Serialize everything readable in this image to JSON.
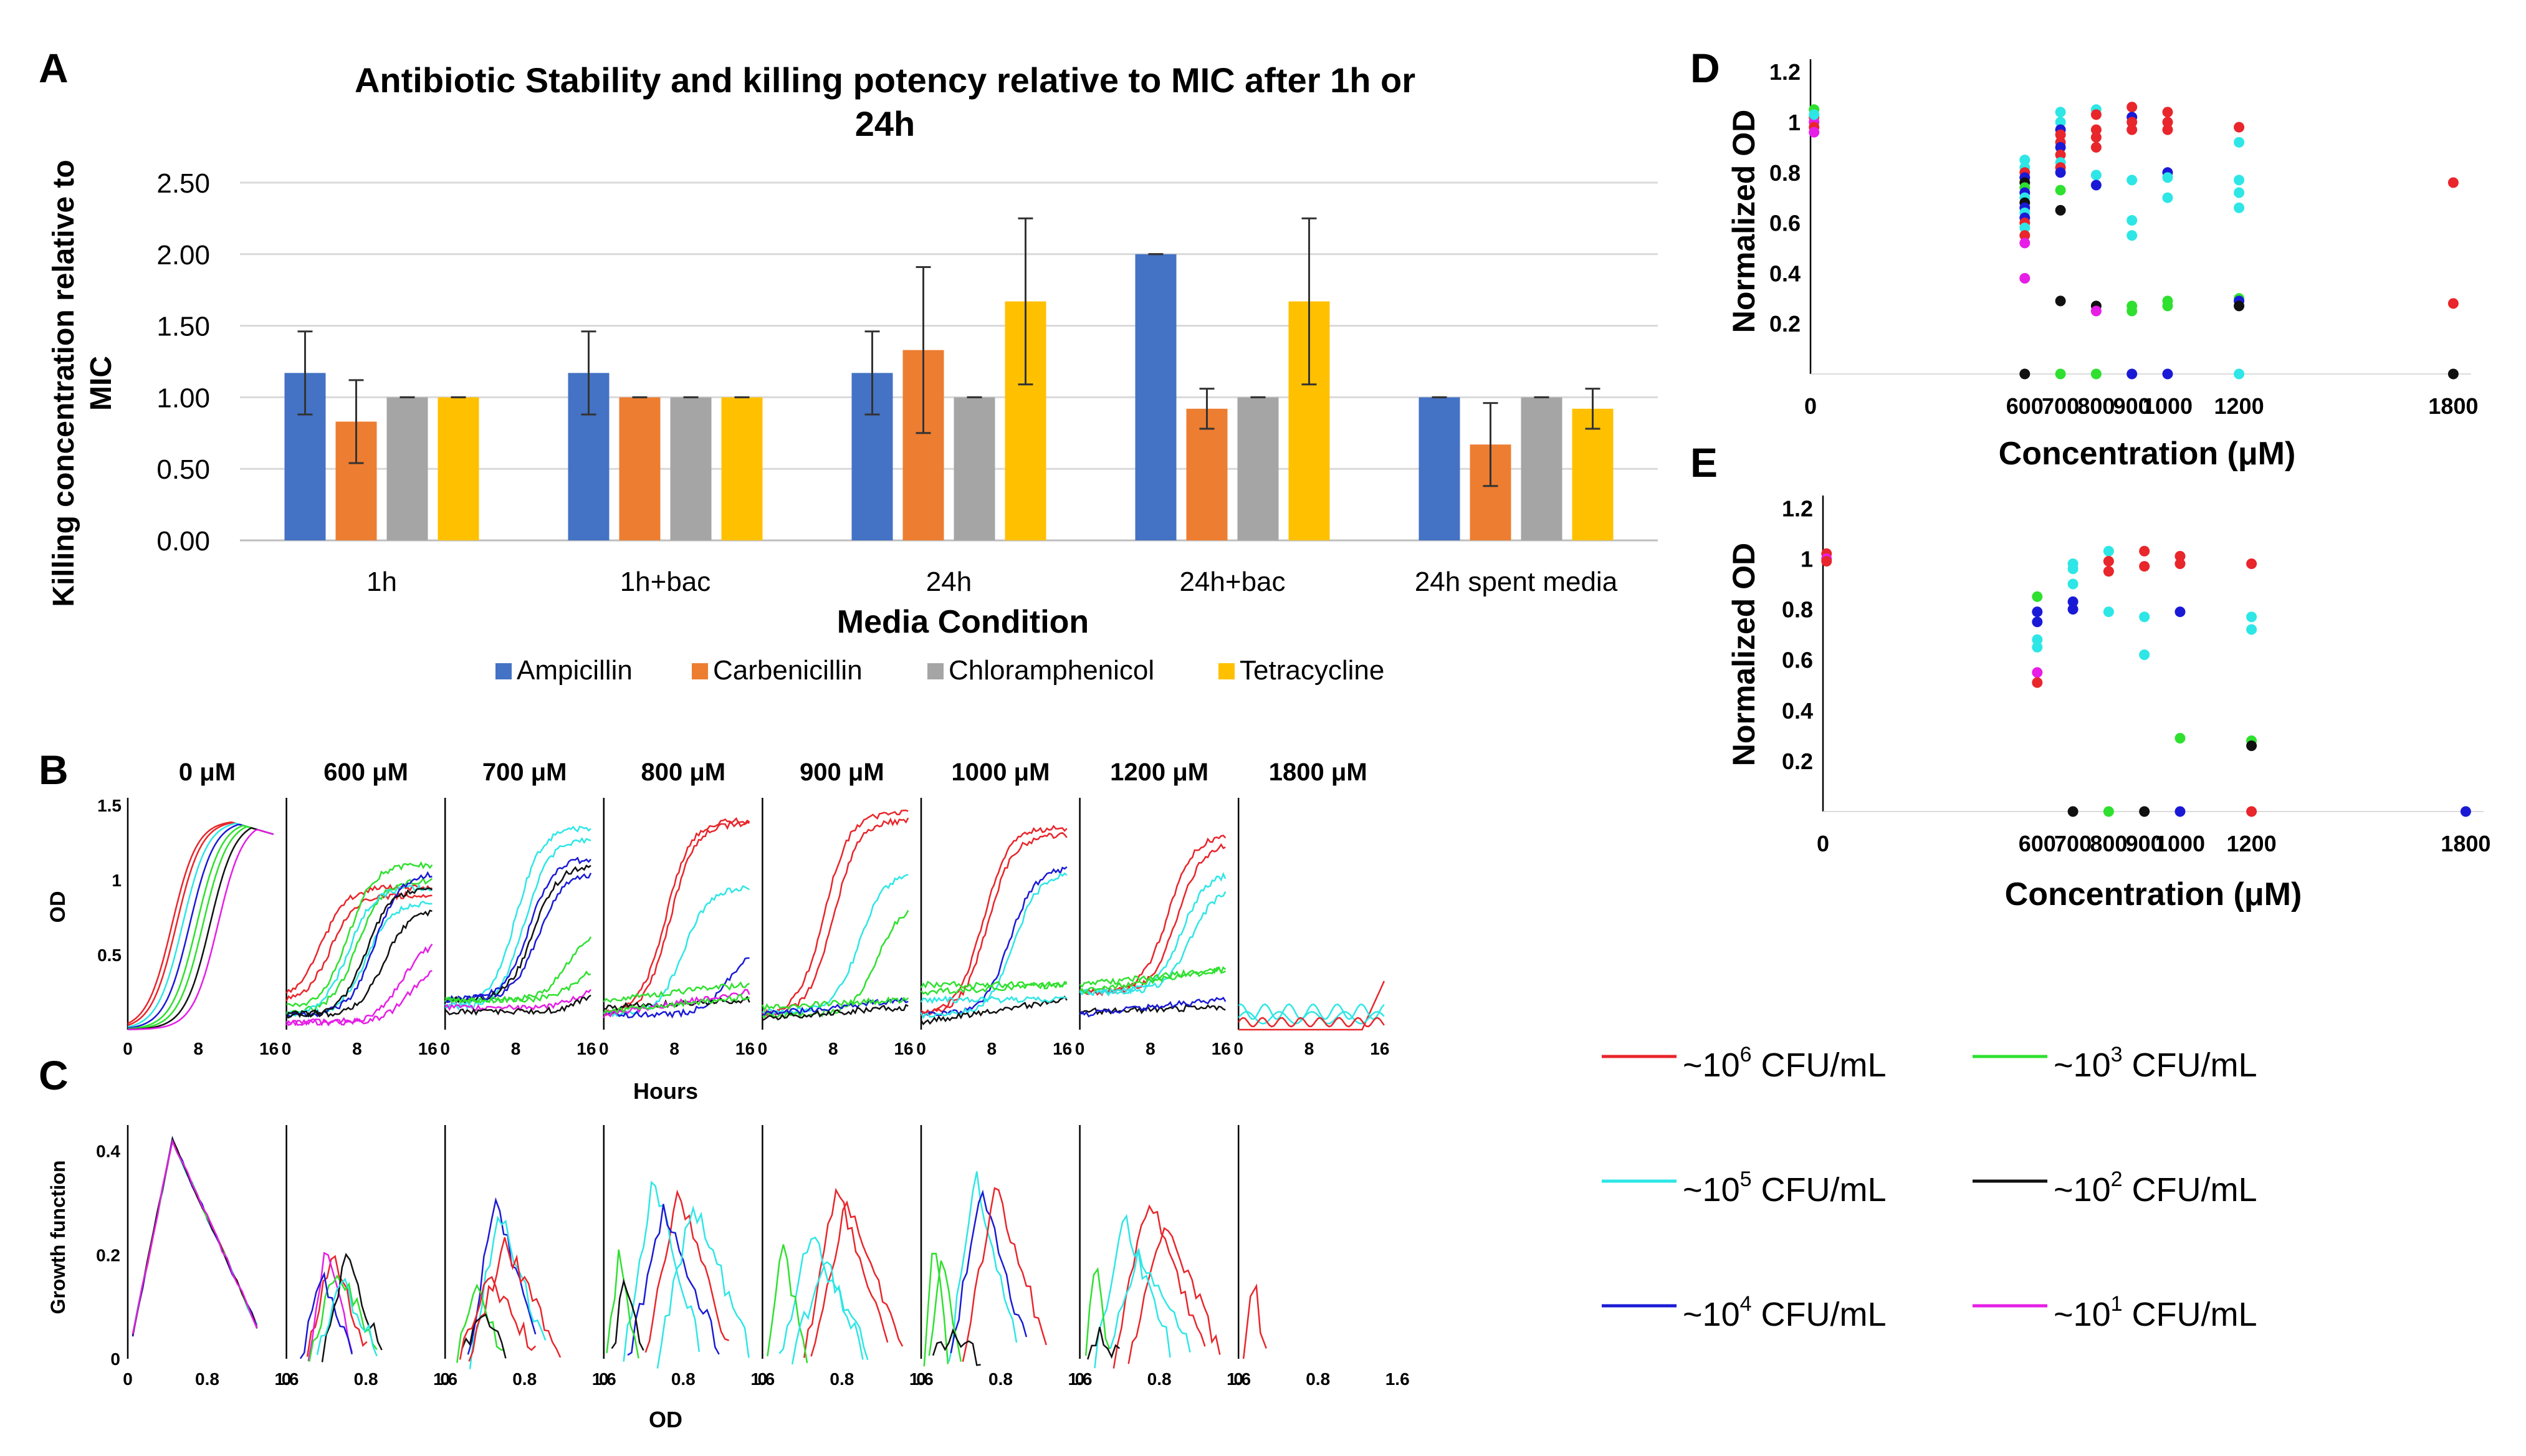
{
  "colors": {
    "Ampicillin": "#4472C4",
    "Carbenicillin": "#ED7D31",
    "Chloramphenicol": "#A5A5A5",
    "Tetracycline": "#FFC000",
    "1e6": "#e8262b",
    "1e5": "#2ee6e6",
    "1e4": "#1a1ad6",
    "1e3": "#2fe02f",
    "1e2": "#111111",
    "1e1": "#e61ee6"
  },
  "panels": {
    "A": "A",
    "B": "B",
    "C": "C",
    "D": "D",
    "E": "E"
  },
  "legend_cfu": [
    {
      "key": "1e6",
      "prefix": "~10",
      "exp": "6",
      "suffix": " CFU/mL"
    },
    {
      "key": "1e3",
      "prefix": "~10",
      "exp": "3",
      "suffix": " CFU/mL"
    },
    {
      "key": "1e5",
      "prefix": "~10",
      "exp": "5",
      "suffix": " CFU/mL"
    },
    {
      "key": "1e2",
      "prefix": "~10",
      "exp": "2",
      "suffix": " CFU/mL"
    },
    {
      "key": "1e4",
      "prefix": "~10",
      "exp": "4",
      "suffix": " CFU/mL"
    },
    {
      "key": "1e1",
      "prefix": "~10",
      "exp": "1",
      "suffix": " CFU/mL"
    }
  ],
  "small_multiples": {
    "concentrations": [
      "0 μM",
      "600 μM",
      "700 μM",
      "800 μM",
      "900 μM",
      "1000 μM",
      "1200 μM",
      "1800 μM"
    ],
    "B": {
      "ylabel": "OD",
      "xlabel": "Hours",
      "xlim": [
        0,
        18
      ],
      "ylim": [
        0,
        1.55
      ],
      "xticks": [
        0,
        8,
        16
      ],
      "xtick_labels": [
        "0",
        "8",
        "16"
      ],
      "yticks": [
        0.5,
        1,
        1.5
      ],
      "ytick_labels": [
        "0.5",
        "1",
        "1.5"
      ]
    },
    "C": {
      "ylabel": "Growth function",
      "xlabel": "OD",
      "xlim": [
        0,
        1.6
      ],
      "ylim": [
        0,
        0.45
      ],
      "xticks": [
        0,
        0.8,
        1.6
      ],
      "xtick_labels": [
        "0",
        "0.8",
        "1.6"
      ],
      "yticks": [
        0,
        0.2,
        0.4
      ],
      "ytick_labels": [
        "0",
        "0.2",
        "0.4"
      ]
    }
  },
  "chart_data": [
    {
      "id": "A",
      "type": "bar",
      "title": "Antibiotic Stability and killing potency relative to MIC after 1h or 24h",
      "title_lines": [
        "Antibiotic Stability and killing potency relative to MIC after 1h or",
        "24h"
      ],
      "xlabel": "Media Condition",
      "ylabel": "Killing concentration relative to MIC",
      "ylabel_lines": [
        "Killing concentration relative to",
        "MIC"
      ],
      "ylim": [
        0,
        2.5
      ],
      "yticks": [
        0,
        0.5,
        1.0,
        1.5,
        2.0,
        2.5
      ],
      "ytick_labels": [
        "0.00",
        "0.50",
        "1.00",
        "1.50",
        "2.00",
        "2.50"
      ],
      "grid": true,
      "legend_position": "bottom",
      "categories": [
        "1h",
        "1h+bac",
        "24h",
        "24h+bac",
        "24h spent media"
      ],
      "series": [
        {
          "name": "Ampicillin",
          "values": [
            1.17,
            1.17,
            1.17,
            2.0,
            1.0
          ],
          "errors": [
            0.29,
            0.29,
            0.29,
            0.0,
            0.0
          ]
        },
        {
          "name": "Carbenicillin",
          "values": [
            0.83,
            1.0,
            1.33,
            0.92,
            0.67
          ],
          "errors": [
            0.29,
            0.0,
            0.58,
            0.14,
            0.29
          ]
        },
        {
          "name": "Chloramphenicol",
          "values": [
            1.0,
            1.0,
            1.0,
            1.0,
            1.0
          ],
          "errors": [
            0.0,
            0.0,
            0.0,
            0.0,
            0.0
          ]
        },
        {
          "name": "Tetracycline",
          "values": [
            1.0,
            1.0,
            1.67,
            1.67,
            0.92
          ],
          "errors": [
            0.0,
            0.0,
            0.58,
            0.58,
            0.14
          ]
        }
      ]
    },
    {
      "id": "D",
      "type": "scatter",
      "xlabel": "Concentration (μM)",
      "ylabel": "Normalized OD",
      "xlim": [
        0,
        1850
      ],
      "ylim": [
        0,
        1.25
      ],
      "xticks": [
        0,
        600,
        700,
        800,
        900,
        1000,
        1200,
        1800
      ],
      "yticks": [
        0.2,
        0.4,
        0.6,
        0.8,
        1,
        1.2
      ],
      "ytick_labels": [
        "0.2",
        "0.4",
        "0.6",
        "0.8",
        "1",
        "1.2"
      ],
      "points": [
        {
          "x": 10,
          "y": 1.05,
          "c": "1e3"
        },
        {
          "x": 10,
          "y": 1.02,
          "c": "1e6"
        },
        {
          "x": 10,
          "y": 1.0,
          "c": "1e1"
        },
        {
          "x": 10,
          "y": 0.98,
          "c": "1e6"
        },
        {
          "x": 10,
          "y": 0.96,
          "c": "1e1"
        },
        {
          "x": 10,
          "y": 1.03,
          "c": "1e5"
        },
        {
          "x": 600,
          "y": 0.85,
          "c": "1e5"
        },
        {
          "x": 600,
          "y": 0.82,
          "c": "1e5"
        },
        {
          "x": 600,
          "y": 0.8,
          "c": "1e6"
        },
        {
          "x": 600,
          "y": 0.78,
          "c": "1e4"
        },
        {
          "x": 600,
          "y": 0.76,
          "c": "1e2"
        },
        {
          "x": 600,
          "y": 0.74,
          "c": "1e3"
        },
        {
          "x": 600,
          "y": 0.72,
          "c": "1e4"
        },
        {
          "x": 600,
          "y": 0.7,
          "c": "1e5"
        },
        {
          "x": 600,
          "y": 0.68,
          "c": "1e2"
        },
        {
          "x": 600,
          "y": 0.66,
          "c": "1e4"
        },
        {
          "x": 600,
          "y": 0.64,
          "c": "1e5"
        },
        {
          "x": 600,
          "y": 0.62,
          "c": "1e4"
        },
        {
          "x": 600,
          "y": 0.6,
          "c": "1e6"
        },
        {
          "x": 600,
          "y": 0.58,
          "c": "1e5"
        },
        {
          "x": 600,
          "y": 0.55,
          "c": "1e6"
        },
        {
          "x": 600,
          "y": 0.52,
          "c": "1e1"
        },
        {
          "x": 600,
          "y": 0.38,
          "c": "1e1"
        },
        {
          "x": 600,
          "y": 0.0,
          "c": "1e2"
        },
        {
          "x": 700,
          "y": 1.04,
          "c": "1e5"
        },
        {
          "x": 700,
          "y": 1.0,
          "c": "1e5"
        },
        {
          "x": 700,
          "y": 0.97,
          "c": "1e4"
        },
        {
          "x": 700,
          "y": 0.95,
          "c": "1e6"
        },
        {
          "x": 700,
          "y": 0.92,
          "c": "1e6"
        },
        {
          "x": 700,
          "y": 0.9,
          "c": "1e4"
        },
        {
          "x": 700,
          "y": 0.87,
          "c": "1e6"
        },
        {
          "x": 700,
          "y": 0.84,
          "c": "1e5"
        },
        {
          "x": 700,
          "y": 0.82,
          "c": "1e6"
        },
        {
          "x": 700,
          "y": 0.8,
          "c": "1e4"
        },
        {
          "x": 700,
          "y": 0.73,
          "c": "1e3"
        },
        {
          "x": 700,
          "y": 0.65,
          "c": "1e2"
        },
        {
          "x": 700,
          "y": 0.29,
          "c": "1e2"
        },
        {
          "x": 700,
          "y": 0.0,
          "c": "1e3"
        },
        {
          "x": 800,
          "y": 1.05,
          "c": "1e5"
        },
        {
          "x": 800,
          "y": 1.03,
          "c": "1e6"
        },
        {
          "x": 800,
          "y": 0.97,
          "c": "1e6"
        },
        {
          "x": 800,
          "y": 0.94,
          "c": "1e6"
        },
        {
          "x": 800,
          "y": 0.9,
          "c": "1e6"
        },
        {
          "x": 800,
          "y": 0.79,
          "c": "1e5"
        },
        {
          "x": 800,
          "y": 0.75,
          "c": "1e4"
        },
        {
          "x": 800,
          "y": 0.27,
          "c": "1e2"
        },
        {
          "x": 800,
          "y": 0.25,
          "c": "1e1"
        },
        {
          "x": 800,
          "y": 0.0,
          "c": "1e3"
        },
        {
          "x": 900,
          "y": 1.06,
          "c": "1e6"
        },
        {
          "x": 900,
          "y": 1.02,
          "c": "1e4"
        },
        {
          "x": 900,
          "y": 1.0,
          "c": "1e6"
        },
        {
          "x": 900,
          "y": 0.97,
          "c": "1e6"
        },
        {
          "x": 900,
          "y": 0.77,
          "c": "1e5"
        },
        {
          "x": 900,
          "y": 0.61,
          "c": "1e5"
        },
        {
          "x": 900,
          "y": 0.55,
          "c": "1e5"
        },
        {
          "x": 900,
          "y": 0.27,
          "c": "1e3"
        },
        {
          "x": 900,
          "y": 0.25,
          "c": "1e3"
        },
        {
          "x": 900,
          "y": 0.0,
          "c": "1e4"
        },
        {
          "x": 1000,
          "y": 1.04,
          "c": "1e6"
        },
        {
          "x": 1000,
          "y": 1.0,
          "c": "1e6"
        },
        {
          "x": 1000,
          "y": 0.97,
          "c": "1e6"
        },
        {
          "x": 1000,
          "y": 0.8,
          "c": "1e4"
        },
        {
          "x": 1000,
          "y": 0.78,
          "c": "1e5"
        },
        {
          "x": 1000,
          "y": 0.7,
          "c": "1e5"
        },
        {
          "x": 1000,
          "y": 0.29,
          "c": "1e3"
        },
        {
          "x": 1000,
          "y": 0.27,
          "c": "1e3"
        },
        {
          "x": 1000,
          "y": 0.0,
          "c": "1e4"
        },
        {
          "x": 1200,
          "y": 0.98,
          "c": "1e6"
        },
        {
          "x": 1200,
          "y": 0.92,
          "c": "1e5"
        },
        {
          "x": 1200,
          "y": 0.77,
          "c": "1e5"
        },
        {
          "x": 1200,
          "y": 0.72,
          "c": "1e5"
        },
        {
          "x": 1200,
          "y": 0.66,
          "c": "1e5"
        },
        {
          "x": 1200,
          "y": 0.3,
          "c": "1e3"
        },
        {
          "x": 1200,
          "y": 0.29,
          "c": "1e4"
        },
        {
          "x": 1200,
          "y": 0.27,
          "c": "1e2"
        },
        {
          "x": 1200,
          "y": 0.0,
          "c": "1e5"
        },
        {
          "x": 1800,
          "y": 0.76,
          "c": "1e6"
        },
        {
          "x": 1800,
          "y": 0.28,
          "c": "1e6"
        },
        {
          "x": 1800,
          "y": 0.0,
          "c": "1e2"
        }
      ]
    },
    {
      "id": "E",
      "type": "scatter",
      "xlabel": "Concentration (μM)",
      "ylabel": "Normalized OD",
      "xlim": [
        0,
        1850
      ],
      "ylim": [
        0,
        1.25
      ],
      "xticks": [
        0,
        600,
        700,
        800,
        900,
        1000,
        1200,
        1800
      ],
      "yticks": [
        0.2,
        0.4,
        0.6,
        0.8,
        1,
        1.2
      ],
      "ytick_labels": [
        "0.2",
        "0.4",
        "0.6",
        "0.8",
        "1",
        "1.2"
      ],
      "points": [
        {
          "x": 10,
          "y": 1.02,
          "c": "1e6"
        },
        {
          "x": 10,
          "y": 1.0,
          "c": "1e1"
        },
        {
          "x": 10,
          "y": 0.99,
          "c": "1e6"
        },
        {
          "x": 600,
          "y": 0.85,
          "c": "1e3"
        },
        {
          "x": 600,
          "y": 0.79,
          "c": "1e4"
        },
        {
          "x": 600,
          "y": 0.75,
          "c": "1e4"
        },
        {
          "x": 600,
          "y": 0.68,
          "c": "1e5"
        },
        {
          "x": 600,
          "y": 0.65,
          "c": "1e5"
        },
        {
          "x": 600,
          "y": 0.55,
          "c": "1e1"
        },
        {
          "x": 600,
          "y": 0.51,
          "c": "1e6"
        },
        {
          "x": 700,
          "y": 0.98,
          "c": "1e5"
        },
        {
          "x": 700,
          "y": 0.96,
          "c": "1e5"
        },
        {
          "x": 700,
          "y": 0.9,
          "c": "1e5"
        },
        {
          "x": 700,
          "y": 0.83,
          "c": "1e4"
        },
        {
          "x": 700,
          "y": 0.8,
          "c": "1e4"
        },
        {
          "x": 700,
          "y": 0.0,
          "c": "1e2"
        },
        {
          "x": 800,
          "y": 1.03,
          "c": "1e5"
        },
        {
          "x": 800,
          "y": 0.99,
          "c": "1e6"
        },
        {
          "x": 800,
          "y": 0.95,
          "c": "1e6"
        },
        {
          "x": 800,
          "y": 0.79,
          "c": "1e5"
        },
        {
          "x": 800,
          "y": 0.0,
          "c": "1e3"
        },
        {
          "x": 900,
          "y": 1.03,
          "c": "1e6"
        },
        {
          "x": 900,
          "y": 0.97,
          "c": "1e6"
        },
        {
          "x": 900,
          "y": 0.77,
          "c": "1e5"
        },
        {
          "x": 900,
          "y": 0.62,
          "c": "1e5"
        },
        {
          "x": 900,
          "y": 0.0,
          "c": "1e2"
        },
        {
          "x": 1000,
          "y": 1.01,
          "c": "1e6"
        },
        {
          "x": 1000,
          "y": 0.98,
          "c": "1e6"
        },
        {
          "x": 1000,
          "y": 0.79,
          "c": "1e4"
        },
        {
          "x": 1000,
          "y": 0.29,
          "c": "1e3"
        },
        {
          "x": 1000,
          "y": 0.0,
          "c": "1e4"
        },
        {
          "x": 1200,
          "y": 0.98,
          "c": "1e6"
        },
        {
          "x": 1200,
          "y": 0.77,
          "c": "1e5"
        },
        {
          "x": 1200,
          "y": 0.72,
          "c": "1e5"
        },
        {
          "x": 1200,
          "y": 0.28,
          "c": "1e3"
        },
        {
          "x": 1200,
          "y": 0.26,
          "c": "1e2"
        },
        {
          "x": 1200,
          "y": 0.0,
          "c": "1e6"
        },
        {
          "x": 1800,
          "y": 0.0,
          "c": "1e4"
        }
      ]
    }
  ]
}
